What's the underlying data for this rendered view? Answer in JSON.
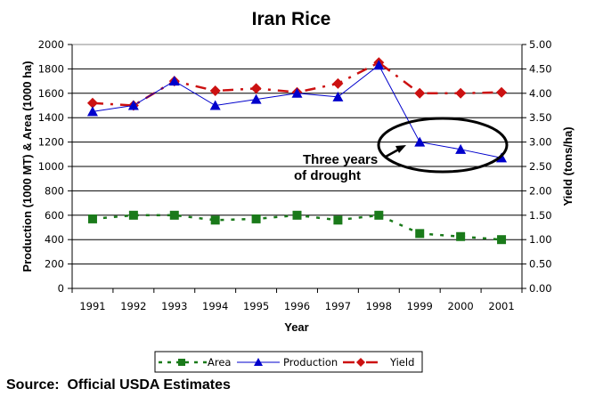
{
  "chart_data": {
    "type": "line",
    "title": "Iran Rice",
    "xlabel": "Year",
    "ylabel": "Production (1000 MT) & Area (1000 ha)",
    "y2label": "Yield (tons/ha)",
    "categories": [
      "1991",
      "1992",
      "1993",
      "1994",
      "1995",
      "1996",
      "1997",
      "1998",
      "1999",
      "2000",
      "2001"
    ],
    "ylim": [
      0,
      2000
    ],
    "y_ticks": [
      "0",
      "200",
      "400",
      "600",
      "800",
      "1000",
      "1200",
      "1400",
      "1600",
      "1800",
      "2000"
    ],
    "y2lim": [
      0,
      5
    ],
    "y2_ticks": [
      "0.00",
      "0.50",
      "1.00",
      "1.50",
      "2.00",
      "2.50",
      "3.00",
      "3.50",
      "4.00",
      "4.50",
      "5.00"
    ],
    "grid": true,
    "legend_position": "bottom",
    "series": [
      {
        "name": "Area",
        "axis": "left",
        "color": "#1a7a1a",
        "marker": "square",
        "line": "dotted",
        "values": [
          570,
          600,
          600,
          560,
          570,
          600,
          560,
          600,
          450,
          425,
          400
        ]
      },
      {
        "name": "Production",
        "axis": "left",
        "color": "#0000cc",
        "marker": "triangle",
        "line": "solid",
        "values": [
          1450,
          1500,
          1700,
          1500,
          1550,
          1600,
          1570,
          1830,
          1200,
          1140,
          1070
        ]
      },
      {
        "name": "Yield",
        "axis": "right",
        "color": "#cc1111",
        "marker": "diamond",
        "line": "dash-dot",
        "values": [
          3.8,
          3.75,
          4.25,
          4.05,
          4.1,
          4.02,
          4.2,
          4.63,
          4.0,
          4.0,
          4.02
        ]
      }
    ],
    "annotations": [
      {
        "text_lines": [
          "Three years",
          "of drought"
        ],
        "points_to": [
          "1999",
          "2000",
          "2001"
        ],
        "series": "Production"
      }
    ]
  },
  "source": "Source:  Official USDA Estimates"
}
